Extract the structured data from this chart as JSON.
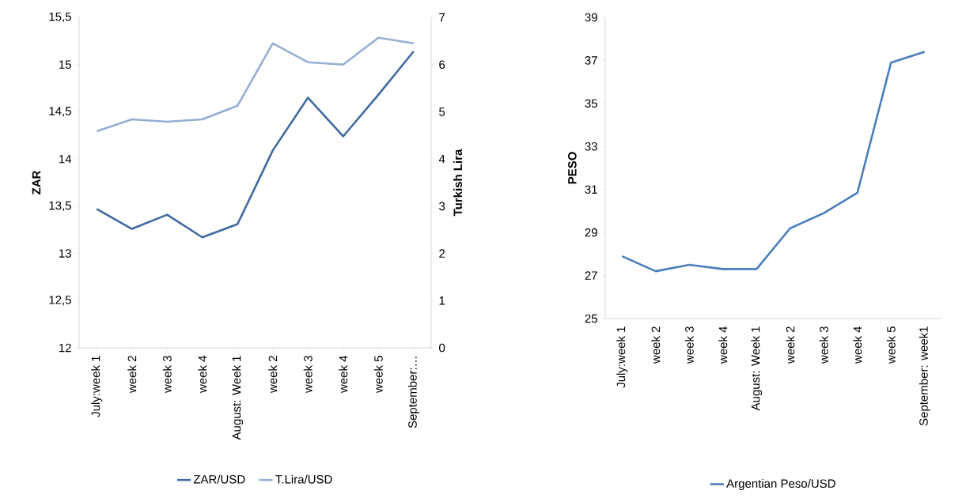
{
  "chart_data": [
    {
      "type": "line",
      "categories": [
        "July:week 1",
        "week 2",
        "week 3",
        "week 4",
        "August: Week 1",
        "week 2",
        "week 3",
        "week 4",
        "week 5",
        "September:…"
      ],
      "ylabel": "ZAR",
      "y2label": "Turkish Lira",
      "ylim": [
        12,
        15.5
      ],
      "yticks": [
        12,
        {
          "value": 12.5,
          "label": "12,5"
        },
        13,
        {
          "value": 13.5,
          "label": "13,5"
        },
        14,
        {
          "value": 14.5,
          "label": "14,5"
        },
        15,
        {
          "value": 15.5,
          "label": "15,5"
        }
      ],
      "y2lim": [
        0,
        7
      ],
      "y2ticks": [
        0,
        1,
        2,
        3,
        4,
        5,
        6,
        7
      ],
      "legend": "bottom",
      "series": [
        {
          "name": "ZAR/USD",
          "color": "#3f6aa0",
          "values": [
            13.47,
            13.26,
            13.41,
            13.17,
            13.31,
            14.09,
            14.65,
            14.24,
            14.68,
            15.14
          ]
        },
        {
          "name": "T.Lira/USD",
          "color": "#95aed4",
          "axis": "y2",
          "values": [
            4.59,
            4.84,
            4.79,
            4.84,
            5.13,
            6.45,
            6.05,
            6.0,
            6.57,
            6.45
          ]
        }
      ]
    },
    {
      "type": "line",
      "categories": [
        "July:week 1",
        "week 2",
        "week 3",
        "week 4",
        "August: Week 1",
        "week 2",
        "week 3",
        "week 4",
        "week 5",
        "September: week1"
      ],
      "ylabel": "PESO",
      "ylim": [
        25,
        39
      ],
      "yticks": [
        25,
        27,
        29,
        31,
        33,
        35,
        37,
        39
      ],
      "legend": "bottom",
      "series": [
        {
          "name": "Argentian Peso/USD",
          "color": "#4a7ebb",
          "values": [
            27.9,
            27.2,
            27.5,
            27.3,
            27.3,
            29.2,
            29.9,
            30.85,
            36.9,
            37.4
          ]
        }
      ]
    }
  ]
}
